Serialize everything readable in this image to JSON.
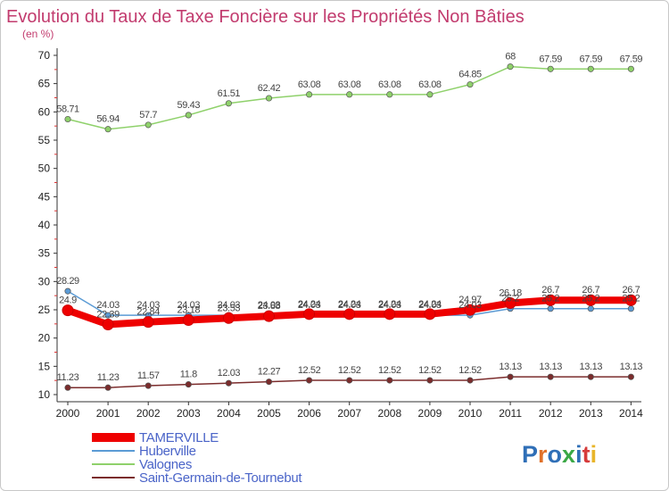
{
  "chart_data": {
    "type": "line",
    "title": "Evolution du Taux de Taxe Foncière sur les Propriétés Non Bâties",
    "ylabel": "(en %)",
    "xlabel": "",
    "x": [
      "2000",
      "2001",
      "2002",
      "2003",
      "2004",
      "2005",
      "2006",
      "2007",
      "2008",
      "2009",
      "2010",
      "2011",
      "2012",
      "2013",
      "2014"
    ],
    "ylim": [
      10,
      70
    ],
    "yticks": [
      "10",
      "15",
      "20",
      "25",
      "30",
      "35",
      "40",
      "45",
      "50",
      "55",
      "60",
      "65",
      "70"
    ],
    "grid": false,
    "legend_position": "bottom-left",
    "series": [
      {
        "name": "TAMERVILLE",
        "color": "#ee0000",
        "values": [
          24.9,
          22.39,
          22.84,
          23.18,
          23.53,
          23.88,
          24.24,
          24.24,
          24.24,
          24.24,
          24.97,
          26.18,
          26.7,
          26.7,
          26.7
        ],
        "labels": [
          "24.9",
          "22.39",
          "22.84",
          "23.18",
          "23.53",
          "23.88",
          "24.24",
          "24.24",
          "24.24",
          "24.24",
          "24.97",
          "26.18",
          "26.7",
          "26.7",
          "26.7"
        ]
      },
      {
        "name": "Huberville",
        "color": "#5b9bd5",
        "values": [
          28.29,
          24.03,
          24.03,
          24.03,
          24.03,
          24.03,
          24.03,
          24.03,
          24.03,
          24.03,
          24.03,
          25.2,
          25.2,
          25.2,
          25.2
        ],
        "labels": [
          "28.29",
          "24.03",
          "24.03",
          "24.03",
          "24.03",
          "24.03",
          "24.03",
          "24.03",
          "24.03",
          "24.03",
          "24.03",
          "25.2",
          "25.2",
          "25.2",
          "25.2"
        ]
      },
      {
        "name": "Valognes",
        "color": "#8fd16b",
        "values": [
          58.71,
          56.94,
          57.7,
          59.43,
          61.51,
          62.42,
          63.08,
          63.08,
          63.08,
          63.08,
          64.85,
          68,
          67.59,
          67.59,
          67.59
        ],
        "labels": [
          "58.71",
          "56.94",
          "57.7",
          "59.43",
          "61.51",
          "62.42",
          "63.08",
          "63.08",
          "63.08",
          "63.08",
          "64.85",
          "68",
          "67.59",
          "67.59",
          "67.59"
        ]
      },
      {
        "name": "Saint-Germain-de-Tournebut",
        "color": "#7b2c2c",
        "values": [
          11.23,
          11.23,
          11.57,
          11.8,
          12.03,
          12.27,
          12.52,
          12.52,
          12.52,
          12.52,
          12.52,
          13.13,
          13.13,
          13.13,
          13.13
        ],
        "labels": [
          "11.23",
          "11.23",
          "11.57",
          "11.8",
          "12.03",
          "12.27",
          "12.52",
          "12.52",
          "12.52",
          "12.52",
          "12.52",
          "13.13",
          "13.13",
          "13.13",
          "13.13"
        ]
      }
    ]
  },
  "logo": {
    "text": "Proxiti"
  }
}
